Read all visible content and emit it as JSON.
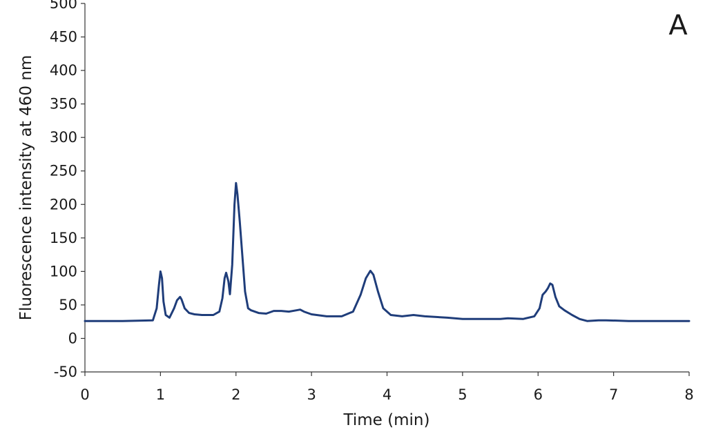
{
  "chart_data": {
    "type": "line",
    "panel_label": "A",
    "xlabel": "Time (min)",
    "ylabel": "Fluorescence intensity at 460 nm",
    "xlim": [
      0,
      8
    ],
    "ylim": [
      -50,
      500
    ],
    "xticks": [
      0,
      1,
      2,
      3,
      4,
      5,
      6,
      7,
      8
    ],
    "yticks": [
      -50,
      0,
      50,
      100,
      150,
      200,
      250,
      300,
      350,
      400,
      450,
      500
    ],
    "grid": false,
    "legend": "none",
    "series": [
      {
        "color": "#1f3d7a",
        "x": [
          0,
          0.5,
          0.9,
          0.95,
          0.98,
          1.0,
          1.02,
          1.04,
          1.07,
          1.12,
          1.18,
          1.22,
          1.26,
          1.28,
          1.32,
          1.38,
          1.45,
          1.55,
          1.7,
          1.78,
          1.82,
          1.85,
          1.87,
          1.9,
          1.92,
          1.95,
          1.98,
          2.0,
          2.02,
          2.05,
          2.08,
          2.12,
          2.16,
          2.2,
          2.3,
          2.4,
          2.5,
          2.6,
          2.7,
          2.8,
          2.85,
          2.9,
          3.0,
          3.2,
          3.4,
          3.55,
          3.65,
          3.72,
          3.78,
          3.82,
          3.88,
          3.95,
          4.05,
          4.2,
          4.35,
          4.5,
          4.8,
          5.0,
          5.3,
          5.5,
          5.6,
          5.8,
          5.95,
          6.02,
          6.06,
          6.1,
          6.13,
          6.16,
          6.19,
          6.23,
          6.28,
          6.35,
          6.45,
          6.55,
          6.65,
          6.8,
          6.9,
          7.2,
          7.5,
          8.0
        ],
        "y": [
          26,
          26,
          27,
          45,
          80,
          100,
          90,
          55,
          35,
          31,
          45,
          57,
          62,
          58,
          45,
          38,
          36,
          35,
          35,
          40,
          60,
          90,
          98,
          85,
          66,
          110,
          200,
          232,
          215,
          175,
          130,
          70,
          45,
          42,
          38,
          37,
          41,
          41,
          40,
          42,
          43,
          40,
          36,
          33,
          33,
          40,
          65,
          90,
          101,
          95,
          70,
          45,
          35,
          33,
          35,
          33,
          31,
          29,
          29,
          29,
          30,
          29,
          33,
          45,
          65,
          70,
          75,
          82,
          80,
          62,
          48,
          42,
          35,
          29,
          26,
          27,
          27,
          26,
          26,
          26
        ]
      }
    ]
  }
}
